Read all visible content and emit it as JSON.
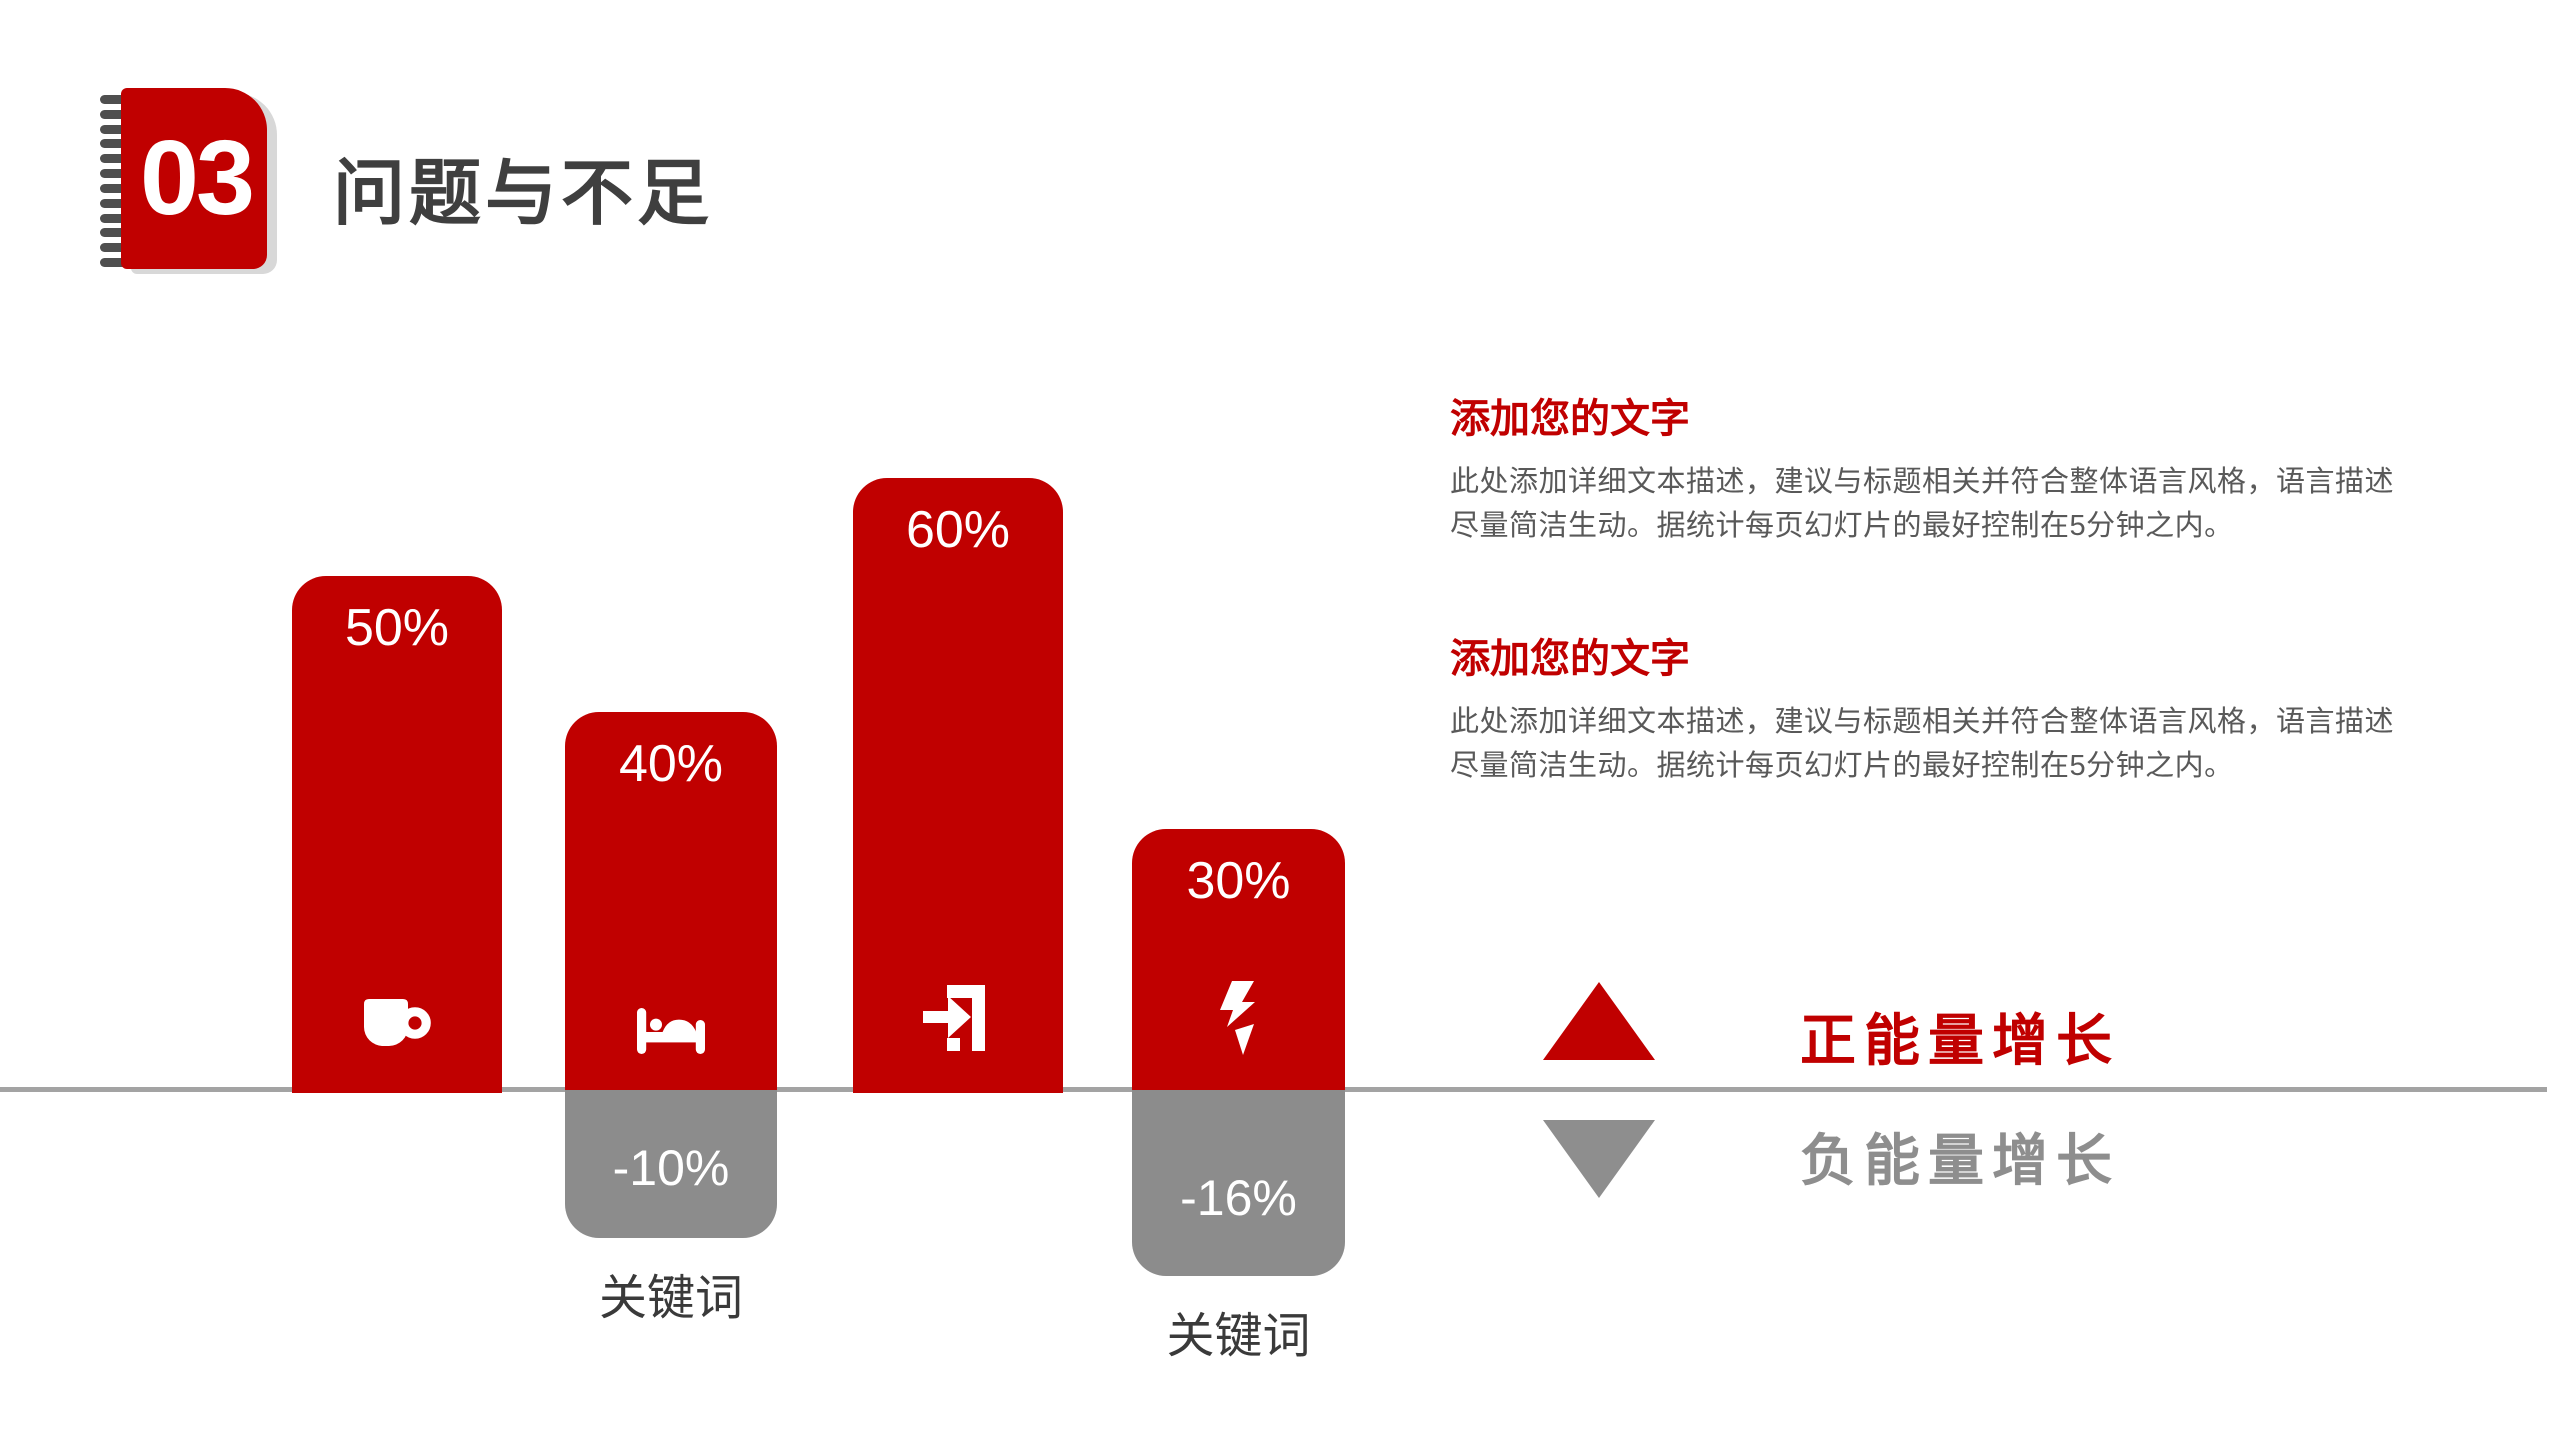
{
  "header": {
    "section_number": "03",
    "title": "问题与不足"
  },
  "colors": {
    "accent_red": "#C00000",
    "bar_gray": "#8C8C8C",
    "axis_gray": "#A3A3A3",
    "title_gray": "#3F3F3F",
    "body_gray": "#595959"
  },
  "chart_data": {
    "type": "bar",
    "unit": "%",
    "baseline": 0,
    "positive_color": "#C00000",
    "negative_color": "#8C8C8C",
    "grid": false,
    "bars": [
      {
        "icon": "cup",
        "positive": 50,
        "positive_label": "50%"
      },
      {
        "icon": "bed",
        "positive": 40,
        "positive_label": "40%",
        "negative": -10,
        "negative_label": "-10%",
        "keyword": "关键词"
      },
      {
        "icon": "sign-in",
        "positive": 60,
        "positive_label": "60%"
      },
      {
        "icon": "lightning",
        "positive": 30,
        "positive_label": "30%",
        "negative": -16,
        "negative_label": "-16%",
        "keyword": "关键词"
      }
    ],
    "legend": [
      {
        "symbol": "triangle-up",
        "color": "#C00000",
        "label": "正能量增长"
      },
      {
        "symbol": "triangle-down",
        "color": "#8E8E8E",
        "label": "负能量增长"
      }
    ]
  },
  "text_blocks": [
    {
      "heading": "添加您的文字",
      "body": "此处添加详细文本描述，建议与标题相关并符合整体语言风格，语言描述尽量简洁生动。据统计每页幻灯片的最好控制在5分钟之内。"
    },
    {
      "heading": "添加您的文字",
      "body": "此处添加详细文本描述，建议与标题相关并符合整体语言风格，语言描述尽量简洁生动。据统计每页幻灯片的最好控制在5分钟之内。"
    }
  ]
}
